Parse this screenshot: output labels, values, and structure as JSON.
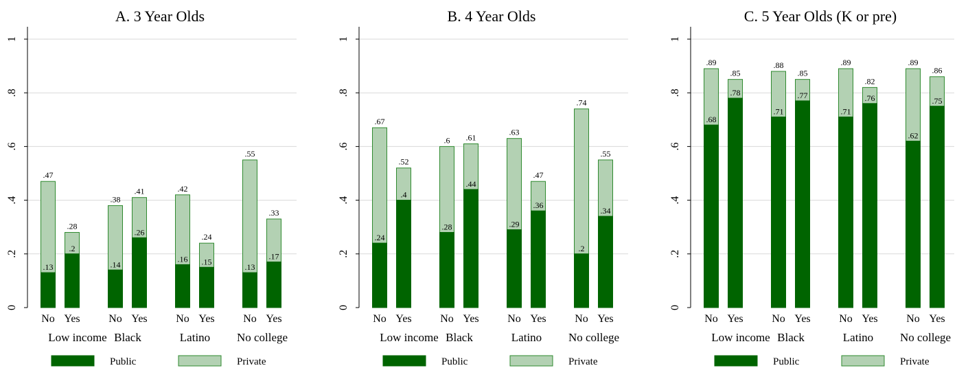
{
  "colors": {
    "public_fill": "#006400",
    "private_fill": "#b3d1b3",
    "bar_stroke": "#2f8a2f",
    "grid": "#d9d9d9",
    "axis": "#000000"
  },
  "chart_data": [
    {
      "type": "bar",
      "stacked": true,
      "title": "A. 3 Year Olds",
      "groups": [
        "Low income",
        "Black",
        "Latino",
        "No college"
      ],
      "subcategories": [
        "No",
        "Yes"
      ],
      "ylim": [
        0,
        1
      ],
      "yticks": [
        0,
        0.2,
        0.4,
        0.6,
        0.8,
        1
      ],
      "ytick_labels": [
        "0",
        ".2",
        ".4",
        ".6",
        ".8",
        "1"
      ],
      "grid": true,
      "series": [
        {
          "name": "Public",
          "values": [
            0.13,
            0.2,
            0.14,
            0.26,
            0.16,
            0.15,
            0.13,
            0.17
          ],
          "labels": [
            ".13",
            ".2",
            ".14",
            ".26",
            ".16",
            ".15",
            ".13",
            ".17"
          ]
        },
        {
          "name": "Private",
          "values": [
            0.34,
            0.08,
            0.24,
            0.15,
            0.26,
            0.09,
            0.42,
            0.16
          ]
        }
      ],
      "totals": [
        0.47,
        0.28,
        0.38,
        0.41,
        0.42,
        0.24,
        0.55,
        0.33
      ],
      "total_labels": [
        ".47",
        ".28",
        ".38",
        ".41",
        ".42",
        ".24",
        ".55",
        ".33"
      ],
      "legend": {
        "position": "bottom",
        "items": [
          "Public",
          "Private"
        ]
      }
    },
    {
      "type": "bar",
      "stacked": true,
      "title": "B. 4 Year Olds",
      "groups": [
        "Low income",
        "Black",
        "Latino",
        "No college"
      ],
      "subcategories": [
        "No",
        "Yes"
      ],
      "ylim": [
        0,
        1
      ],
      "yticks": [
        0,
        0.2,
        0.4,
        0.6,
        0.8,
        1
      ],
      "ytick_labels": [
        "0",
        ".2",
        ".4",
        ".6",
        ".8",
        "1"
      ],
      "grid": true,
      "series": [
        {
          "name": "Public",
          "values": [
            0.24,
            0.4,
            0.28,
            0.44,
            0.29,
            0.36,
            0.2,
            0.34
          ],
          "labels": [
            ".24",
            ".4",
            ".28",
            ".44",
            ".29",
            ".36",
            ".2",
            ".34"
          ]
        },
        {
          "name": "Private",
          "values": [
            0.43,
            0.12,
            0.32,
            0.17,
            0.34,
            0.11,
            0.54,
            0.21
          ]
        }
      ],
      "totals": [
        0.67,
        0.52,
        0.6,
        0.61,
        0.63,
        0.47,
        0.74,
        0.55
      ],
      "total_labels": [
        ".67",
        ".52",
        ".6",
        ".61",
        ".63",
        ".47",
        ".74",
        ".55"
      ],
      "legend": {
        "position": "bottom",
        "items": [
          "Public",
          "Private"
        ]
      }
    },
    {
      "type": "bar",
      "stacked": true,
      "title": "C. 5 Year Olds (K or pre)",
      "groups": [
        "Low income",
        "Black",
        "Latino",
        "No college"
      ],
      "subcategories": [
        "No",
        "Yes"
      ],
      "ylim": [
        0,
        1
      ],
      "yticks": [
        0,
        0.2,
        0.4,
        0.6,
        0.8,
        1
      ],
      "ytick_labels": [
        "0",
        ".2",
        ".4",
        ".6",
        ".8",
        "1"
      ],
      "grid": true,
      "series": [
        {
          "name": "Public",
          "values": [
            0.68,
            0.78,
            0.71,
            0.77,
            0.71,
            0.76,
            0.62,
            0.75
          ],
          "labels": [
            ".68",
            ".78",
            ".71",
            ".77",
            ".71",
            ".76",
            ".62",
            ".75"
          ]
        },
        {
          "name": "Private",
          "values": [
            0.21,
            0.07,
            0.17,
            0.08,
            0.18,
            0.06,
            0.27,
            0.11
          ]
        }
      ],
      "totals": [
        0.89,
        0.85,
        0.88,
        0.85,
        0.89,
        0.82,
        0.89,
        0.86
      ],
      "total_labels": [
        ".89",
        ".85",
        ".88",
        ".85",
        ".89",
        ".82",
        ".89",
        ".86"
      ],
      "legend": {
        "position": "bottom",
        "items": [
          "Public",
          "Private"
        ]
      }
    }
  ]
}
